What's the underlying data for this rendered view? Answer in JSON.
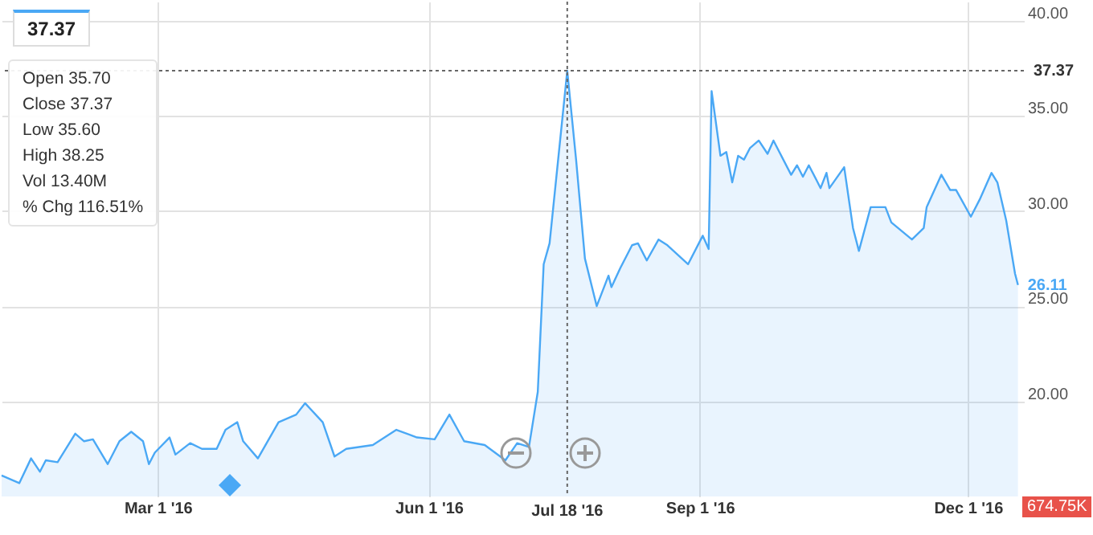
{
  "chart_data": {
    "type": "area",
    "annotations": [
      "37.37",
      "Open 35.70",
      "Close 37.37",
      "Low 35.60",
      "High 38.25",
      "Vol 13.40M",
      "% Chg 116.51%",
      {
        "text": "26.11",
        "x": "2016-12-18",
        "y": 26.11
      },
      "674.75K"
    ],
    "xlim": [
      "2016-01-08",
      "2016-12-20"
    ],
    "xticks": [
      {
        "value": "2016-03-01",
        "label": "Mar 1 '16"
      },
      {
        "value": "2016-06-01",
        "label": "Jun 1 '16"
      },
      {
        "value": "2016-09-01",
        "label": "Sep 1 '16"
      },
      {
        "value": "2016-12-01",
        "label": "Dec 1 '16"
      }
    ],
    "ylim": [
      15,
      41
    ],
    "yticks": [
      {
        "value": 20,
        "label": "20.00"
      },
      {
        "value": 25,
        "label": "25.00"
      },
      {
        "value": 30,
        "label": "30.00"
      },
      {
        "value": 35,
        "label": "35.00"
      },
      {
        "value": 40,
        "label": "40.00"
      }
    ],
    "grid": true,
    "marker": "none",
    "line_style": "solid",
    "ref_lines": [
      {
        "axis": "x",
        "value": "2016-07-18",
        "label": "Jul 18 '16",
        "color": "#666666",
        "line_style": "dotted"
      },
      {
        "axis": "y",
        "value": 37.37,
        "label": "37.37",
        "color": "#666666",
        "line_style": "dotted"
      }
    ],
    "series": [
      {
        "color": "#4aa8f5",
        "x": [
          "2016-01-08",
          "2016-01-14",
          "2016-01-18",
          "2016-01-21",
          "2016-01-23",
          "2016-01-27",
          "2016-02-02",
          "2016-02-05",
          "2016-02-08",
          "2016-02-13",
          "2016-02-17",
          "2016-02-21",
          "2016-02-25",
          "2016-02-27",
          "2016-02-29",
          "2016-03-05",
          "2016-03-07",
          "2016-03-12",
          "2016-03-16",
          "2016-03-21",
          "2016-03-24",
          "2016-03-28",
          "2016-03-30",
          "2016-04-04",
          "2016-04-11",
          "2016-04-17",
          "2016-04-20",
          "2016-04-26",
          "2016-04-30",
          "2016-05-04",
          "2016-05-13",
          "2016-05-21",
          "2016-05-28",
          "2016-06-03",
          "2016-06-08",
          "2016-06-13",
          "2016-06-20",
          "2016-06-27",
          "2016-07-01",
          "2016-07-05",
          "2016-07-08",
          "2016-07-10",
          "2016-07-12",
          "2016-07-18",
          "2016-07-21",
          "2016-07-24",
          "2016-07-28",
          "2016-08-01",
          "2016-08-02",
          "2016-08-05",
          "2016-08-09",
          "2016-08-11",
          "2016-08-14",
          "2016-08-18",
          "2016-08-21",
          "2016-08-28",
          "2016-09-02",
          "2016-09-04",
          "2016-09-05",
          "2016-09-08",
          "2016-09-10",
          "2016-09-12",
          "2016-09-14",
          "2016-09-16",
          "2016-09-18",
          "2016-09-21",
          "2016-09-24",
          "2016-09-26",
          "2016-10-02",
          "2016-10-04",
          "2016-10-06",
          "2016-10-08",
          "2016-10-12",
          "2016-10-14",
          "2016-10-15",
          "2016-10-20",
          "2016-10-23",
          "2016-10-25",
          "2016-10-29",
          "2016-11-03",
          "2016-11-05",
          "2016-11-12",
          "2016-11-16",
          "2016-11-17",
          "2016-11-22",
          "2016-11-25",
          "2016-11-27",
          "2016-12-02",
          "2016-12-05",
          "2016-12-09",
          "2016-12-11",
          "2016-12-14",
          "2016-12-17",
          "2016-12-18"
        ],
        "values": [
          16.1,
          15.7,
          17.0,
          16.3,
          16.9,
          16.8,
          18.3,
          17.9,
          18.0,
          16.7,
          17.9,
          18.4,
          17.9,
          16.7,
          17.3,
          18.1,
          17.2,
          17.8,
          17.5,
          17.5,
          18.5,
          18.9,
          17.9,
          17.0,
          18.9,
          19.3,
          19.9,
          18.9,
          17.1,
          17.5,
          17.7,
          18.5,
          18.1,
          18.0,
          19.3,
          17.9,
          17.7,
          16.9,
          17.8,
          17.6,
          20.5,
          27.2,
          28.3,
          37.37,
          32.7,
          27.5,
          25.0,
          26.6,
          26.0,
          27.0,
          28.2,
          28.3,
          27.4,
          28.5,
          28.2,
          27.2,
          28.7,
          28.0,
          36.3,
          32.9,
          33.1,
          31.5,
          32.9,
          32.7,
          33.3,
          33.7,
          33.0,
          33.7,
          31.9,
          32.4,
          31.8,
          32.4,
          31.2,
          32.0,
          31.2,
          32.3,
          29.1,
          27.9,
          30.2,
          30.2,
          29.4,
          28.5,
          29.1,
          30.2,
          31.9,
          31.1,
          31.1,
          29.7,
          30.6,
          32.0,
          31.5,
          29.5,
          26.7,
          26.11
        ]
      }
    ]
  }
}
